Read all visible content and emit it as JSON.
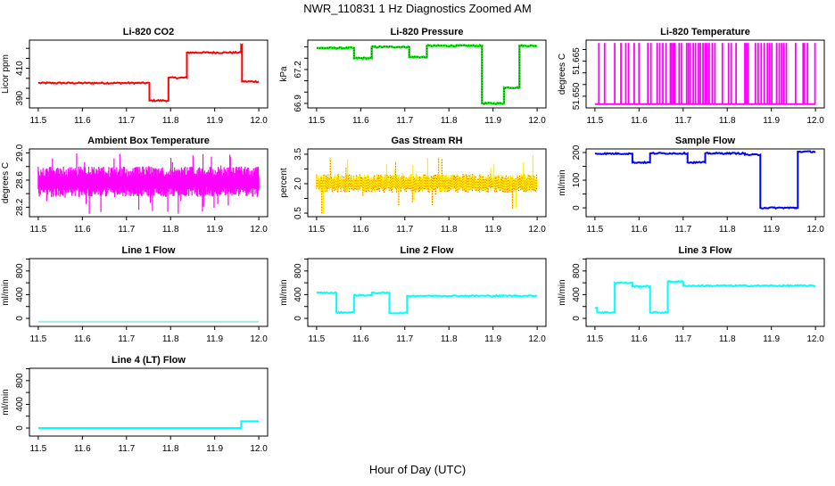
{
  "title": "NWR_110831  1 Hz Diagnostics Zoomed AM",
  "xlabel": "Hour of Day (UTC)",
  "chart_data": [
    {
      "type": "line",
      "style": "step",
      "title": "Li-820 CO2",
      "ylabel": "Licor ppm",
      "color": "#ff0000",
      "xlim": [
        11.48,
        12.02
      ],
      "ylim": [
        383.6,
        428.8
      ],
      "yticks": [
        390,
        396.67,
        403.33,
        410,
        416.67,
        423.33
      ],
      "ylabels": [
        {
          "v": 390,
          "t": "390"
        },
        {
          "v": 410,
          "t": "410"
        }
      ],
      "xticks": [
        {
          "v": 11.5,
          "t": "11.5"
        },
        {
          "v": 11.6,
          "t": "11.6"
        },
        {
          "v": 11.7,
          "t": "11.7"
        },
        {
          "v": 11.8,
          "t": "11.8"
        },
        {
          "v": 11.9,
          "t": "11.9"
        },
        {
          "v": 12.0,
          "t": "12.0"
        }
      ],
      "noise": 0.5,
      "segments": [
        [
          11.5,
          11.752,
          400.2
        ],
        [
          11.752,
          11.795,
          388.5
        ],
        [
          11.795,
          11.837,
          403.7
        ],
        [
          11.837,
          11.96,
          420.5
        ],
        [
          11.96,
          11.962,
          425.5
        ],
        [
          11.962,
          12.0,
          401.2
        ]
      ]
    },
    {
      "type": "line",
      "style": "step-dotted",
      "title": "Li-820 Pressure",
      "ylabel": "kPa",
      "color": "#00ee00",
      "xlim": [
        11.48,
        12.02
      ],
      "ylim": [
        66.86,
        67.46
      ],
      "yticks": [
        66.9,
        67.0,
        67.1,
        67.2,
        67.3,
        67.4
      ],
      "ylabels": [
        {
          "v": 66.9,
          "t": "66.9"
        },
        {
          "v": 67.2,
          "t": "67.2"
        }
      ],
      "xticks": [
        {
          "v": 11.5,
          "t": "11.5"
        },
        {
          "v": 11.6,
          "t": "11.6"
        },
        {
          "v": 11.7,
          "t": "11.7"
        },
        {
          "v": 11.8,
          "t": "11.8"
        },
        {
          "v": 11.9,
          "t": "11.9"
        },
        {
          "v": 12.0,
          "t": "12.0"
        }
      ],
      "noise": 0.006,
      "segments": [
        [
          11.5,
          11.585,
          67.39
        ],
        [
          11.585,
          11.625,
          67.3
        ],
        [
          11.625,
          11.71,
          67.4
        ],
        [
          11.71,
          11.75,
          67.31
        ],
        [
          11.75,
          11.875,
          67.41
        ],
        [
          11.875,
          11.925,
          66.9
        ],
        [
          11.925,
          11.96,
          67.04
        ],
        [
          11.96,
          12.0,
          67.41
        ]
      ]
    },
    {
      "type": "line",
      "style": "spikes",
      "title": "Li-820 Temperature",
      "ylabel": "degrees C",
      "color": "#ff00ff",
      "xlim": [
        11.48,
        12.02
      ],
      "ylim": [
        51.645,
        51.674
      ],
      "yticks": [
        51.65,
        51.655,
        51.66,
        51.665,
        51.67
      ],
      "ylabels": [
        {
          "v": 51.65,
          "t": "51.650"
        },
        {
          "v": 51.665,
          "t": "51.665"
        }
      ],
      "xticks": [
        {
          "v": 11.5,
          "t": "11.5"
        },
        {
          "v": 11.6,
          "t": "11.6"
        },
        {
          "v": 11.7,
          "t": "11.7"
        },
        {
          "v": 11.8,
          "t": "11.8"
        },
        {
          "v": 11.9,
          "t": "11.9"
        },
        {
          "v": 12.0,
          "t": "12.0"
        }
      ],
      "baseline": 51.6466,
      "spike_top": 51.6728,
      "spikes": [
        11.509,
        11.522,
        11.545,
        11.559,
        11.57,
        11.576,
        11.589,
        11.6,
        11.62,
        11.627,
        11.641,
        11.647,
        11.654,
        11.661,
        11.671,
        11.674,
        11.678,
        11.681,
        11.691,
        11.696,
        11.708,
        11.712,
        11.716,
        11.723,
        11.728,
        11.735,
        11.739,
        11.745,
        11.75,
        11.754,
        11.759,
        11.766,
        11.772,
        11.789,
        11.803,
        11.809,
        11.82,
        11.84,
        11.843,
        11.847,
        11.864,
        11.87,
        11.877,
        11.884,
        11.891,
        11.896,
        11.901,
        11.912,
        11.918,
        11.923,
        11.928,
        11.934,
        11.955,
        11.972,
        11.975,
        11.982,
        11.999
      ]
    },
    {
      "type": "line",
      "style": "band",
      "title": "Ambient Box Temperature",
      "ylabel": "degrees C",
      "color": "#ff00ff",
      "xlim": [
        11.48,
        12.02
      ],
      "ylim": [
        28.06,
        29.06
      ],
      "yticks": [
        28.2,
        28.4,
        28.6,
        28.8,
        29.0
      ],
      "ylabels": [
        {
          "v": 28.2,
          "t": "28.2"
        },
        {
          "v": 28.6,
          "t": "28.6"
        },
        {
          "v": 29.0,
          "t": "29.0"
        }
      ],
      "xticks": [
        {
          "v": 11.5,
          "t": "11.5"
        },
        {
          "v": 11.6,
          "t": "11.6"
        },
        {
          "v": 11.7,
          "t": "11.7"
        },
        {
          "v": 11.8,
          "t": "11.8"
        },
        {
          "v": 11.9,
          "t": "11.9"
        },
        {
          "v": 12.0,
          "t": "12.0"
        }
      ],
      "mean": 28.57,
      "band": [
        28.35,
        28.8
      ],
      "extremes": [
        28.1,
        29.0
      ]
    },
    {
      "type": "line",
      "style": "band-dotted",
      "title": "Gas Stream RH",
      "ylabel": "percent",
      "color": "#ffee00",
      "dot_color": "#ff0000",
      "xlim": [
        11.48,
        12.02
      ],
      "ylim": [
        0.32,
        3.77
      ],
      "yticks": [
        0.5,
        1.25,
        2.0,
        2.75,
        3.5
      ],
      "ylabels": [
        {
          "v": 0.5,
          "t": "0.5"
        },
        {
          "v": 2.0,
          "t": "2.0"
        },
        {
          "v": 3.5,
          "t": "3.5"
        }
      ],
      "xticks": [
        {
          "v": 11.5,
          "t": "11.5"
        },
        {
          "v": 11.6,
          "t": "11.6"
        },
        {
          "v": 11.7,
          "t": "11.7"
        },
        {
          "v": 11.8,
          "t": "11.8"
        },
        {
          "v": 11.9,
          "t": "11.9"
        },
        {
          "v": 12.0,
          "t": "12.0"
        }
      ],
      "mean": 2.0,
      "band": [
        1.55,
        2.5
      ],
      "extremes": [
        0.4,
        3.5
      ]
    },
    {
      "type": "line",
      "style": "step",
      "title": "Sample Flow",
      "ylabel": "ml/min",
      "color": "#0000ff",
      "xlim": [
        11.48,
        12.02
      ],
      "ylim": [
        -32,
        213
      ],
      "yticks": [
        0,
        50,
        100,
        150,
        200
      ],
      "ylabels": [
        {
          "v": 0,
          "t": "0"
        },
        {
          "v": 100,
          "t": "100"
        },
        {
          "v": 200,
          "t": "200"
        }
      ],
      "xticks": [
        {
          "v": 11.5,
          "t": "11.5"
        },
        {
          "v": 11.6,
          "t": "11.6"
        },
        {
          "v": 11.7,
          "t": "11.7"
        },
        {
          "v": 11.8,
          "t": "11.8"
        },
        {
          "v": 11.9,
          "t": "11.9"
        },
        {
          "v": 12.0,
          "t": "12.0"
        }
      ],
      "noise": 2.5,
      "segments": [
        [
          11.5,
          11.585,
          196
        ],
        [
          11.585,
          11.625,
          164
        ],
        [
          11.625,
          11.71,
          197
        ],
        [
          11.71,
          11.75,
          164
        ],
        [
          11.75,
          11.84,
          197
        ],
        [
          11.84,
          11.875,
          192
        ],
        [
          11.875,
          11.96,
          0
        ],
        [
          11.96,
          12.0,
          203
        ]
      ]
    },
    {
      "type": "line",
      "style": "step",
      "title": "Line 1 Flow",
      "ylabel": "ml/min",
      "color": "#a0e8ec",
      "xlim": [
        11.48,
        12.02
      ],
      "ylim": [
        -135,
        1008
      ],
      "yticks": [
        0,
        200,
        400,
        600,
        800,
        1000
      ],
      "ylabels": [
        {
          "v": 0,
          "t": "0"
        },
        {
          "v": 400,
          "t": "400"
        },
        {
          "v": 800,
          "t": "800"
        }
      ],
      "xticks": [
        {
          "v": 11.5,
          "t": "11.5"
        },
        {
          "v": 11.6,
          "t": "11.6"
        },
        {
          "v": 11.7,
          "t": "11.7"
        },
        {
          "v": 11.8,
          "t": "11.8"
        },
        {
          "v": 11.9,
          "t": "11.9"
        },
        {
          "v": 12.0,
          "t": "12.0"
        }
      ],
      "noise": 0,
      "segments": [
        [
          11.5,
          12.0,
          -57
        ]
      ]
    },
    {
      "type": "line",
      "style": "step",
      "title": "Line 2 Flow",
      "ylabel": "ml/min",
      "color": "#00ffff",
      "xlim": [
        11.48,
        12.02
      ],
      "ylim": [
        -135,
        1008
      ],
      "yticks": [
        0,
        200,
        400,
        600,
        800,
        1000
      ],
      "ylabels": [
        {
          "v": 0,
          "t": "0"
        },
        {
          "v": 400,
          "t": "400"
        },
        {
          "v": 800,
          "t": "800"
        }
      ],
      "xticks": [
        {
          "v": 11.5,
          "t": "11.5"
        },
        {
          "v": 11.6,
          "t": "11.6"
        },
        {
          "v": 11.7,
          "t": "11.7"
        },
        {
          "v": 11.8,
          "t": "11.8"
        },
        {
          "v": 11.9,
          "t": "11.9"
        },
        {
          "v": 12.0,
          "t": "12.0"
        }
      ],
      "noise": 10,
      "segments": [
        [
          11.5,
          11.545,
          430
        ],
        [
          11.545,
          11.585,
          100
        ],
        [
          11.585,
          11.625,
          390
        ],
        [
          11.625,
          11.665,
          430
        ],
        [
          11.665,
          11.705,
          90
        ],
        [
          11.705,
          12.0,
          380
        ]
      ]
    },
    {
      "type": "line",
      "style": "step",
      "title": "Line 3 Flow",
      "ylabel": "ml/min",
      "color": "#00ffff",
      "xlim": [
        11.48,
        12.02
      ],
      "ylim": [
        -135,
        1008
      ],
      "yticks": [
        0,
        200,
        400,
        600,
        800,
        1000
      ],
      "ylabels": [
        {
          "v": 0,
          "t": "0"
        },
        {
          "v": 400,
          "t": "400"
        },
        {
          "v": 800,
          "t": "800"
        }
      ],
      "xticks": [
        {
          "v": 11.5,
          "t": "11.5"
        },
        {
          "v": 11.6,
          "t": "11.6"
        },
        {
          "v": 11.7,
          "t": "11.7"
        },
        {
          "v": 11.8,
          "t": "11.8"
        },
        {
          "v": 11.9,
          "t": "11.9"
        },
        {
          "v": 12.0,
          "t": "12.0"
        }
      ],
      "noise": 12,
      "segments": [
        [
          11.5,
          11.505,
          180
        ],
        [
          11.505,
          11.545,
          100
        ],
        [
          11.545,
          11.585,
          600
        ],
        [
          11.585,
          11.625,
          540
        ],
        [
          11.625,
          11.665,
          100
        ],
        [
          11.665,
          11.7,
          620
        ],
        [
          11.7,
          12.0,
          550
        ]
      ]
    },
    {
      "type": "line",
      "style": "step",
      "title": "Line 4 (LT) Flow",
      "ylabel": "ml/min",
      "color": "#00ffff",
      "xlim": [
        11.48,
        12.02
      ],
      "ylim": [
        -135,
        1008
      ],
      "yticks": [
        0,
        200,
        400,
        600,
        800,
        1000
      ],
      "ylabels": [
        {
          "v": 0,
          "t": "0"
        },
        {
          "v": 400,
          "t": "400"
        },
        {
          "v": 800,
          "t": "800"
        }
      ],
      "xticks": [
        {
          "v": 11.5,
          "t": "11.5"
        },
        {
          "v": 11.6,
          "t": "11.6"
        },
        {
          "v": 11.7,
          "t": "11.7"
        },
        {
          "v": 11.8,
          "t": "11.8"
        },
        {
          "v": 11.9,
          "t": "11.9"
        },
        {
          "v": 12.0,
          "t": "12.0"
        }
      ],
      "noise": 0,
      "segments": [
        [
          11.5,
          11.96,
          0
        ],
        [
          11.96,
          12.0,
          115
        ]
      ]
    }
  ]
}
